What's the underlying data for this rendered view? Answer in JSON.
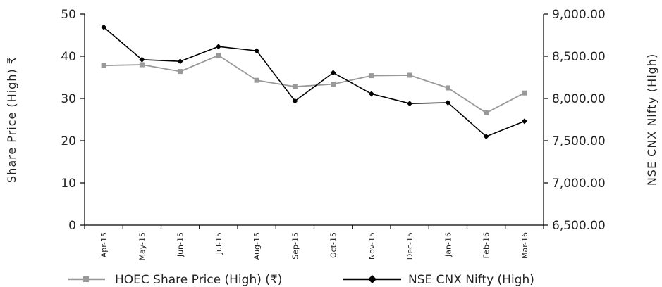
{
  "chart_data": {
    "type": "line",
    "title": "",
    "categories": [
      "Apr-15",
      "May-15",
      "Jun-15",
      "Jul-15",
      "Aug-15",
      "Sep-15",
      "Oct-15",
      "Nov-15",
      "Dec-15",
      "Jan-16",
      "Feb-16",
      "Mar-16"
    ],
    "y_left": {
      "label": "Share Price (High) ₹",
      "ticks": [
        "0",
        "10",
        "20",
        "30",
        "40",
        "50"
      ],
      "range": [
        0,
        50
      ]
    },
    "y_right": {
      "label": "NSE CNX Nifty (High)",
      "ticks": [
        "6,500.00",
        "7,000.00",
        "7,500.00",
        "8,000.00",
        "8,500.00",
        "9,000.00"
      ],
      "range": [
        6500,
        9000
      ]
    },
    "series": [
      {
        "name": "HOEC Share Price (High) (₹)",
        "axis": "left",
        "color": "#999999",
        "marker": "square",
        "values": [
          37.8,
          38.0,
          36.4,
          40.2,
          34.3,
          32.8,
          33.4,
          35.4,
          35.5,
          32.5,
          26.6,
          31.3
        ]
      },
      {
        "name": "NSE CNX Nifty (High)",
        "axis": "right",
        "color": "#000000",
        "marker": "diamond",
        "values": [
          8845,
          8460,
          8440,
          8615,
          8565,
          7970,
          8305,
          8055,
          7940,
          7950,
          7550,
          7730
        ]
      }
    ],
    "grid": false,
    "legend_position": "bottom"
  }
}
